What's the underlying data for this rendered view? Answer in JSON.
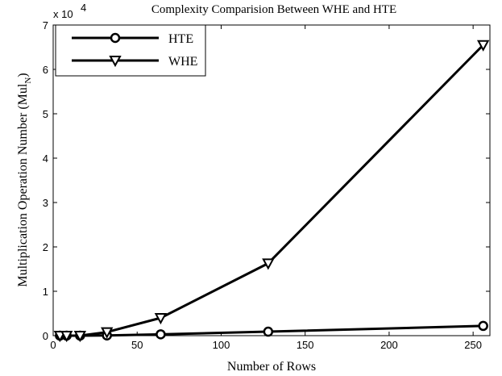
{
  "chart_data": {
    "type": "line",
    "title": "Complexity Comparision Between WHE and HTE",
    "xlabel": "Number of Rows",
    "ylabel": "Multiplication Operation Number (Mul",
    "ylabel_subscript": "N",
    "ylabel_suffix": ")",
    "y_multiplier": {
      "base": "x 10",
      "exponent": "4"
    },
    "xlim": [
      0,
      260
    ],
    "ylim": [
      0,
      7
    ],
    "x_ticks": [
      0,
      50,
      100,
      150,
      200,
      250
    ],
    "y_ticks": [
      0,
      1,
      2,
      3,
      4,
      5,
      6,
      7
    ],
    "grid": false,
    "legend_position": "top-left",
    "series": [
      {
        "name": "HTE",
        "marker": "circle",
        "x": [
          4,
          8,
          16,
          32,
          64,
          128,
          256
        ],
        "y": [
          0.0,
          0.0,
          0.0,
          0.005,
          0.03,
          0.09,
          0.22
        ]
      },
      {
        "name": "WHE",
        "marker": "triangle-down",
        "x": [
          4,
          8,
          16,
          32,
          64,
          128,
          256
        ],
        "y": [
          0.0,
          0.0,
          0.0,
          0.08,
          0.4,
          1.63,
          6.55
        ]
      }
    ]
  }
}
